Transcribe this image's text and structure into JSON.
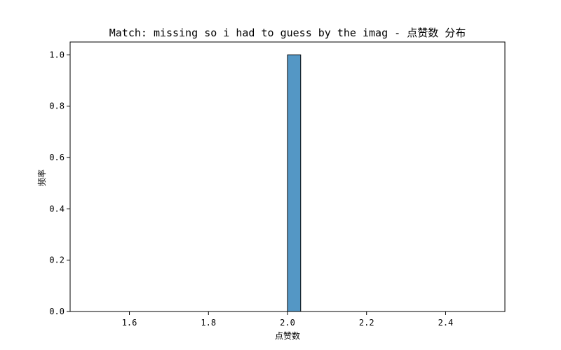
{
  "chart_data": {
    "type": "bar",
    "title": "Match: missing so i had to guess by the imag - 点赞数 分布",
    "xlabel": "点赞数",
    "ylabel": "频率",
    "xlim": [
      1.45,
      2.55
    ],
    "ylim": [
      0.0,
      1.05
    ],
    "x_ticks": [
      1.6,
      1.8,
      2.0,
      2.2,
      2.4
    ],
    "x_tick_labels": [
      "1.6",
      "1.8",
      "2.0",
      "2.2",
      "2.4"
    ],
    "y_ticks": [
      0.0,
      0.2,
      0.4,
      0.6,
      0.8,
      1.0
    ],
    "y_tick_labels": [
      "0.0",
      "0.2",
      "0.4",
      "0.6",
      "0.8",
      "1.0"
    ],
    "bin_start": 1.5,
    "bin_end": 2.5,
    "bin_count": 30,
    "bins": [
      {
        "x0": 2.0,
        "x1": 2.0333,
        "value": 1.0
      }
    ],
    "bar_color": "#5497c5",
    "edge_color": "#000000",
    "grid": false,
    "legend": "none"
  }
}
